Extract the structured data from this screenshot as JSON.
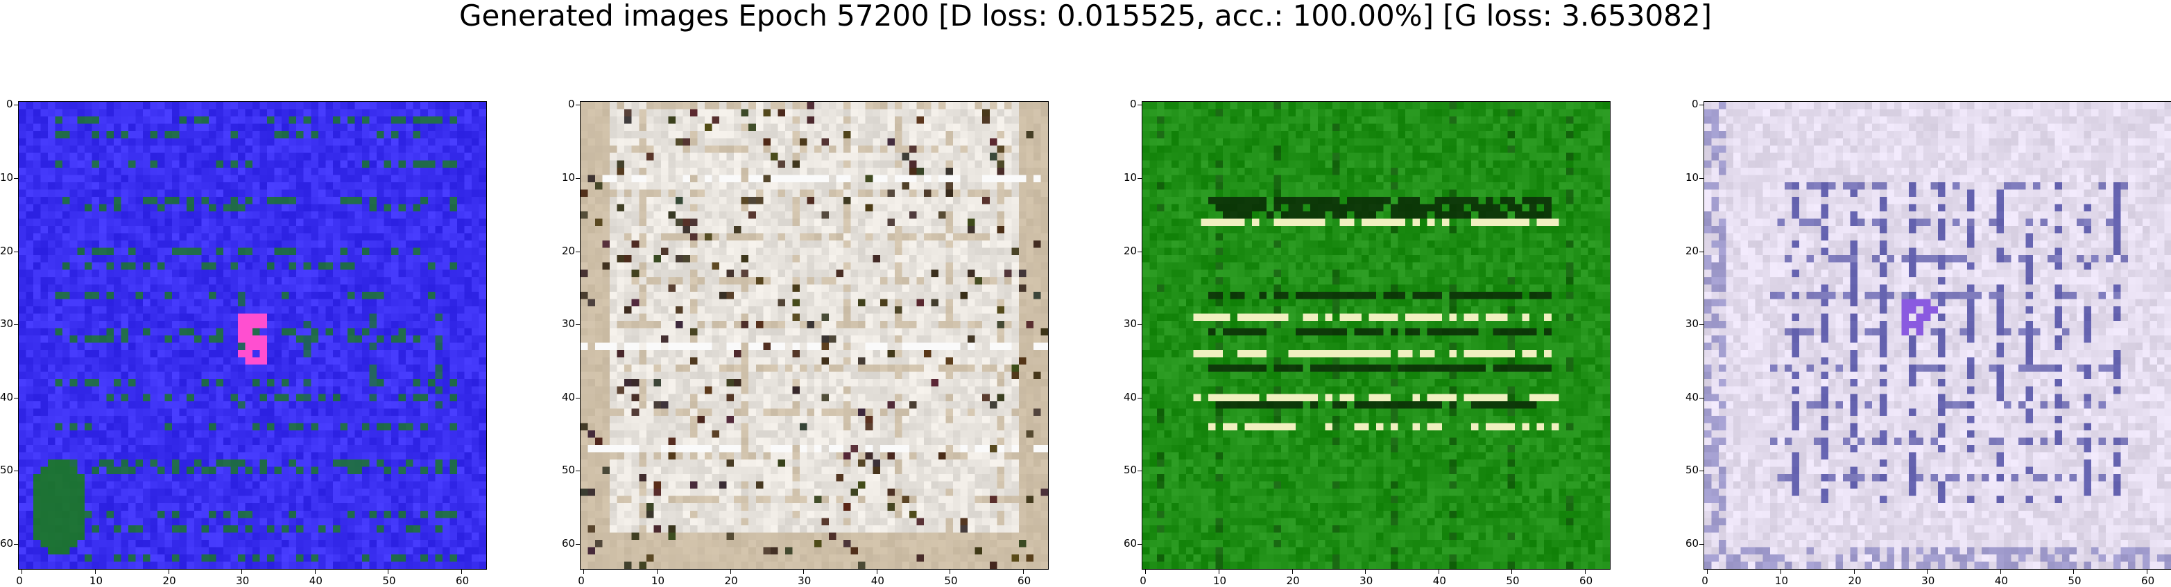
{
  "figure": {
    "title": "Generated images Epoch 57200 [D loss: 0.015525, acc.: 100.00%] [G loss: 3.653082]"
  },
  "axis_ticks": {
    "x": [
      "0",
      "10",
      "20",
      "30",
      "40",
      "50",
      "60"
    ],
    "y": [
      "0",
      "10",
      "20",
      "30",
      "40",
      "50",
      "60"
    ]
  },
  "panels": [
    {
      "id": "sample-1",
      "dominant_color": "#3a2ff0",
      "secondary_color": "#1a7a20",
      "accent_color": "#ff4fd0",
      "style": "blue"
    },
    {
      "id": "sample-2",
      "dominant_color": "#e8e4de",
      "secondary_color": "#b8a07a",
      "accent_color": "#4a3a2a",
      "style": "beige"
    },
    {
      "id": "sample-3",
      "dominant_color": "#1f8f16",
      "secondary_color": "#0a2a06",
      "accent_color": "#f0f0c0",
      "style": "green"
    },
    {
      "id": "sample-4",
      "dominant_color": "#e4dcee",
      "secondary_color": "#3a3a9a",
      "accent_color": "#8a5ae0",
      "style": "lilac"
    }
  ]
}
